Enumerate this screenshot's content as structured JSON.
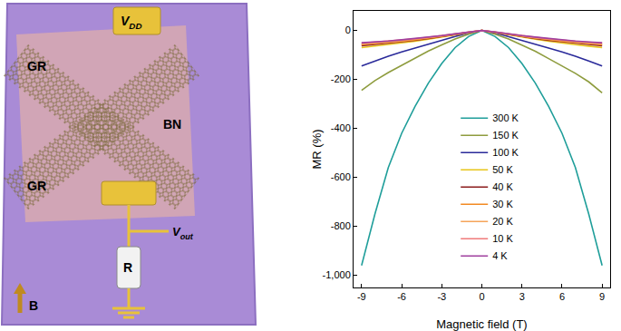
{
  "diagram": {
    "graphene_labels": [
      "GR",
      "GR"
    ],
    "substrate_label": "BN",
    "top_contact": {
      "text": "V",
      "subscript": "DD"
    },
    "output": {
      "text": "V",
      "subscript": "out"
    },
    "resistor": "R",
    "field": "B"
  },
  "chart_data": {
    "type": "line",
    "x_label": "Magnetic field (T)",
    "y_label": "MR (%)",
    "x": [
      -9,
      -8,
      -7,
      -6,
      -5,
      -4,
      -3,
      -2,
      -1,
      0,
      1,
      2,
      3,
      4,
      5,
      6,
      7,
      8,
      9
    ],
    "xlim": [
      -9.6,
      9.6
    ],
    "xticks": [
      -9,
      -6,
      -3,
      0,
      3,
      6,
      9
    ],
    "ylim": [
      -1050,
      80
    ],
    "yticks": [
      {
        "value": -1000,
        "label": "-1,000"
      },
      -800,
      -600,
      -400,
      -200,
      0
    ],
    "grid": false,
    "legend": "center",
    "series": [
      {
        "name": "300 K",
        "color": "#1f9e9a",
        "values": [
          -960,
          -750,
          -560,
          -420,
          -310,
          -215,
          -135,
          -70,
          -25,
          0,
          -25,
          -70,
          -135,
          -215,
          -310,
          -420,
          -560,
          -750,
          -960
        ]
      },
      {
        "name": "150 K",
        "color": "#8e9c3e",
        "values": [
          -245,
          -205,
          -172,
          -142,
          -113,
          -84,
          -59,
          -35,
          -15,
          0,
          -15,
          -35,
          -60,
          -85,
          -115,
          -145,
          -175,
          -210,
          -255
        ]
      },
      {
        "name": "100 K",
        "color": "#2a2a9a",
        "values": [
          -145,
          -125,
          -105,
          -88,
          -72,
          -55,
          -40,
          -25,
          -10,
          0,
          -10,
          -25,
          -40,
          -55,
          -72,
          -88,
          -105,
          -125,
          -145
        ]
      },
      {
        "name": "50 K",
        "color": "#e8c51a",
        "values": [
          -70,
          -64,
          -58,
          -52,
          -44,
          -36,
          -27,
          -18,
          -8,
          0,
          -8,
          -18,
          -27,
          -36,
          -44,
          -52,
          -58,
          -64,
          -70
        ]
      },
      {
        "name": "40 K",
        "color": "#8b1c1c",
        "values": [
          -62,
          -57,
          -52,
          -46,
          -40,
          -33,
          -25,
          -17,
          -8,
          0,
          -8,
          -17,
          -25,
          -33,
          -40,
          -46,
          -52,
          -57,
          -62
        ]
      },
      {
        "name": "30 K",
        "color": "#f28a22",
        "values": [
          -58,
          -54,
          -49,
          -44,
          -38,
          -31,
          -24,
          -16,
          -7,
          0,
          -7,
          -16,
          -24,
          -31,
          -38,
          -44,
          -49,
          -54,
          -58
        ]
      },
      {
        "name": "20 K",
        "color": "#f5a45a",
        "values": [
          -56,
          -52,
          -47,
          -42,
          -36,
          -30,
          -23,
          -15,
          -7,
          0,
          -7,
          -15,
          -23,
          -30,
          -36,
          -42,
          -47,
          -52,
          -56
        ]
      },
      {
        "name": "10 K",
        "color": "#f07a7a",
        "values": [
          -52,
          -48,
          -44,
          -40,
          -34,
          -28,
          -22,
          -14,
          -6,
          0,
          -6,
          -14,
          -22,
          -28,
          -34,
          -40,
          -44,
          -48,
          -52
        ]
      },
      {
        "name": "4 K",
        "color": "#a0409f",
        "values": [
          -50,
          -47,
          -43,
          -38,
          -33,
          -27,
          -21,
          -14,
          -6,
          0,
          -6,
          -14,
          -21,
          -27,
          -33,
          -38,
          -43,
          -47,
          -50
        ]
      }
    ]
  }
}
